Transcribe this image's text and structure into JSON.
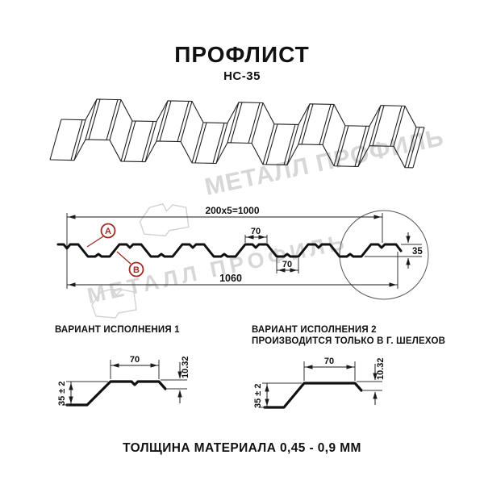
{
  "title": "ПРОФЛИСТ",
  "subtitle": "НС-35",
  "watermark": {
    "text": "МЕТАЛЛ ПРОФИЛЬ"
  },
  "section": {
    "dim_top": "200x5=1000",
    "dim_total": "1060",
    "dim_top_flange": "70",
    "dim_bottom_flange": "70",
    "dim_height": "35",
    "label_a": "А",
    "label_b": "В"
  },
  "variants": [
    {
      "title": "ВАРИАНТ ИСПОЛНЕНИЯ 1",
      "note": "",
      "dim_width": "70",
      "dim_lip": "10.32",
      "dim_height": "35 ± 2"
    },
    {
      "title": "ВАРИАНТ ИСПОЛНЕНИЯ 2",
      "note": "ПРОИЗВОДИТСЯ ТОЛЬКО В Г. ШЕЛЕХОВ",
      "dim_width": "70",
      "dim_lip": "10.32",
      "dim_height": "35 ± 2"
    }
  ],
  "footer": {
    "text": "ТОЛЩИНА МАТЕРИАЛА 0,45 - 0,9 ММ"
  },
  "colors": {
    "line": "#1a1a1a",
    "thin_line": "#333333",
    "accent_red": "#9e2b21",
    "watermark": "#d7d7d7"
  }
}
